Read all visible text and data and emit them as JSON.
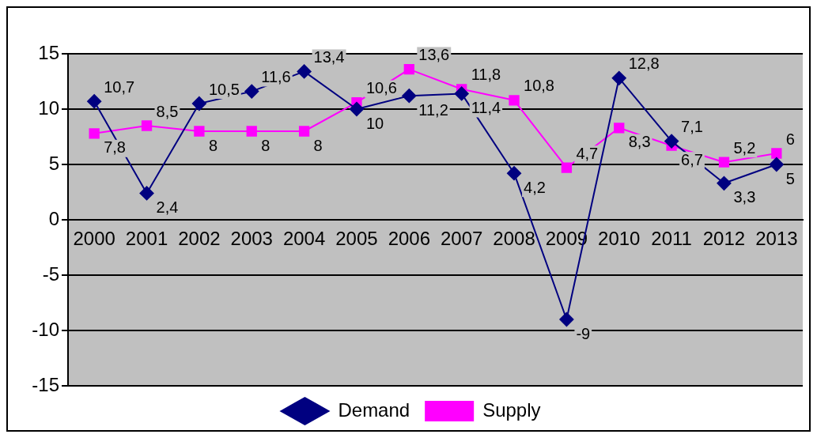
{
  "chart_data": {
    "type": "line",
    "categories": [
      "2000",
      "2001",
      "2002",
      "2003",
      "2004",
      "2005",
      "2006",
      "2007",
      "2008",
      "2009",
      "2010",
      "2011",
      "2012",
      "2013"
    ],
    "series": [
      {
        "name": "Demand",
        "color": "#000080",
        "marker": "diamond",
        "values": [
          10.7,
          2.4,
          10.5,
          11.6,
          13.4,
          10,
          11.2,
          11.4,
          4.2,
          -9,
          12.8,
          7.1,
          3.3,
          5
        ],
        "value_labels": [
          "10,7",
          "2,4",
          "10,5",
          "11,6",
          "13,4",
          "10",
          "11,2",
          "11,4",
          "4,2",
          "-9",
          "12,8",
          "7,1",
          "3,3",
          "5"
        ]
      },
      {
        "name": "Supply",
        "color": "#ff00ff",
        "marker": "square",
        "values": [
          7.8,
          8.5,
          8,
          8,
          8,
          10.6,
          13.6,
          11.8,
          10.8,
          4.7,
          8.3,
          6.7,
          5.2,
          6
        ],
        "value_labels": [
          "7,8",
          "8,5",
          "8",
          "8",
          "8",
          "10,6",
          "13,6",
          "11,8",
          "10,8",
          "4,7",
          "8,3",
          "6,7",
          "5,2",
          "6"
        ]
      }
    ],
    "ylim": [
      -15,
      15
    ],
    "yticks": [
      -15,
      -10,
      -5,
      0,
      5,
      10,
      15
    ],
    "grid": "y",
    "legend": "bottom"
  }
}
